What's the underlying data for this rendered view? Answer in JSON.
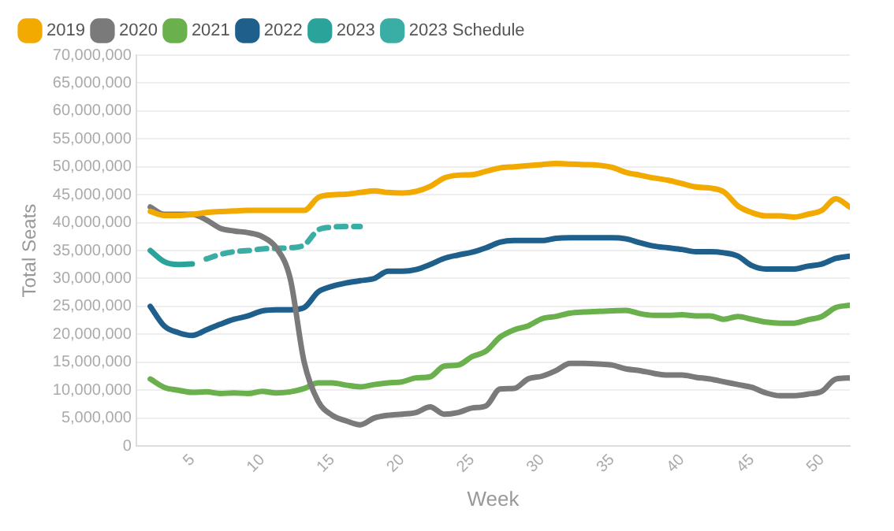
{
  "chart_data": {
    "type": "line",
    "xlabel": "Week",
    "ylabel": "Total Seats",
    "legend": "top",
    "grid": "y",
    "marker": "none",
    "x": [
      2,
      3,
      4,
      5,
      6,
      7,
      8,
      9,
      10,
      11,
      12,
      13,
      14,
      15,
      16,
      17,
      18,
      19,
      20,
      21,
      22,
      23,
      24,
      25,
      26,
      27,
      28,
      29,
      30,
      31,
      32,
      33,
      34,
      35,
      36,
      37,
      38,
      39,
      40,
      41,
      42,
      43,
      44,
      45,
      46,
      47,
      48,
      49,
      50,
      51,
      52
    ],
    "xlim": [
      1,
      52
    ],
    "xticks": [
      5,
      10,
      15,
      20,
      25,
      30,
      35,
      40,
      45,
      50
    ],
    "ylim": [
      0,
      70000000
    ],
    "yticks": [
      {
        "value": 0,
        "label": "0"
      },
      {
        "value": 5000000,
        "label": "5,000,000"
      },
      {
        "value": 10000000,
        "label": "10,000,000"
      },
      {
        "value": 15000000,
        "label": "15,000,000"
      },
      {
        "value": 20000000,
        "label": "20,000,000"
      },
      {
        "value": 25000000,
        "label": "25,000,000"
      },
      {
        "value": 30000000,
        "label": "30,000,000"
      },
      {
        "value": 35000000,
        "label": "35,000,000"
      },
      {
        "value": 40000000,
        "label": "40,000,000"
      },
      {
        "value": 45000000,
        "label": "45,000,000"
      },
      {
        "value": 50000000,
        "label": "50,000,000"
      },
      {
        "value": 55000000,
        "label": "55,000,000"
      },
      {
        "value": 60000000,
        "label": "60,000,000"
      },
      {
        "value": 65000000,
        "label": "65,000,000"
      },
      {
        "value": 70000000,
        "label": "70,000,000"
      }
    ],
    "series": [
      {
        "name": "2019",
        "color": "#f2a900",
        "line_style": "solid",
        "values": [
          42000000,
          41300000,
          41300000,
          41500000,
          41800000,
          42000000,
          42100000,
          42200000,
          42200000,
          42200000,
          42200000,
          42200000,
          44500000,
          45000000,
          45100000,
          45400000,
          45700000,
          45400000,
          45300000,
          45600000,
          46500000,
          48000000,
          48500000,
          48600000,
          49200000,
          49800000,
          50000000,
          50200000,
          50400000,
          50600000,
          50500000,
          50400000,
          50300000,
          49900000,
          49000000,
          48500000,
          48000000,
          47600000,
          47000000,
          46400000,
          46200000,
          45500000,
          43000000,
          41800000,
          41200000,
          41200000,
          41000000,
          41500000,
          42200000,
          44300000,
          42800000
        ]
      },
      {
        "name": "2020",
        "color": "#7a7a7a",
        "line_style": "solid",
        "values": [
          42800000,
          41500000,
          41500000,
          41500000,
          40500000,
          39000000,
          38500000,
          38200000,
          37500000,
          35500000,
          30000000,
          15000000,
          8000000,
          5500000,
          4500000,
          3800000,
          5000000,
          5500000,
          5700000,
          6000000,
          7000000,
          5700000,
          6000000,
          6800000,
          7200000,
          10200000,
          10300000,
          12000000,
          12500000,
          13500000,
          14800000,
          14800000,
          14700000,
          14500000,
          13800000,
          13500000,
          13000000,
          12700000,
          12700000,
          12300000,
          12000000,
          11500000,
          11000000,
          10500000,
          9500000,
          9000000,
          9000000,
          9300000,
          9800000,
          12000000,
          12200000
        ]
      },
      {
        "name": "2021",
        "color": "#6ab04c",
        "line_style": "solid",
        "values": [
          12000000,
          10500000,
          10000000,
          9600000,
          9700000,
          9400000,
          9500000,
          9400000,
          9800000,
          9500000,
          9700000,
          10300000,
          11300000,
          11300000,
          10900000,
          10600000,
          11000000,
          11300000,
          11500000,
          12200000,
          12400000,
          14300000,
          14500000,
          16000000,
          17000000,
          19500000,
          20800000,
          21500000,
          22800000,
          23200000,
          23800000,
          24000000,
          24100000,
          24200000,
          24300000,
          23700000,
          23400000,
          23400000,
          23500000,
          23300000,
          23300000,
          22700000,
          23200000,
          22700000,
          22200000,
          22000000,
          22000000,
          22600000,
          23200000,
          24800000,
          25200000
        ]
      },
      {
        "name": "2022",
        "color": "#1f5f8b",
        "line_style": "solid",
        "values": [
          25000000,
          21500000,
          20300000,
          19800000,
          20800000,
          21800000,
          22700000,
          23300000,
          24200000,
          24400000,
          24400000,
          24800000,
          27600000,
          28600000,
          29200000,
          29600000,
          30000000,
          31300000,
          31300000,
          31600000,
          32500000,
          33600000,
          34200000,
          34700000,
          35500000,
          36500000,
          36800000,
          36800000,
          36800000,
          37200000,
          37300000,
          37300000,
          37300000,
          37300000,
          37100000,
          36400000,
          35800000,
          35500000,
          35200000,
          34800000,
          34800000,
          34600000,
          34000000,
          32300000,
          31700000,
          31700000,
          31700000,
          32200000,
          32600000,
          33600000,
          34000000
        ]
      },
      {
        "name": "2023",
        "color": "#2aa39a",
        "line_style": "solid",
        "x": [
          2,
          3,
          4,
          5
        ],
        "values": [
          35000000,
          33000000,
          32500000,
          32600000
        ]
      },
      {
        "name": "2023 Schedule",
        "color": "#3aada4",
        "line_style": "dashed",
        "x": [
          6,
          7,
          8,
          9,
          10,
          11,
          12,
          13,
          14,
          15,
          16,
          17
        ],
        "values": [
          33500000,
          34300000,
          34800000,
          35000000,
          35300000,
          35400000,
          35500000,
          36000000,
          38700000,
          39200000,
          39300000,
          39300000
        ]
      }
    ]
  }
}
